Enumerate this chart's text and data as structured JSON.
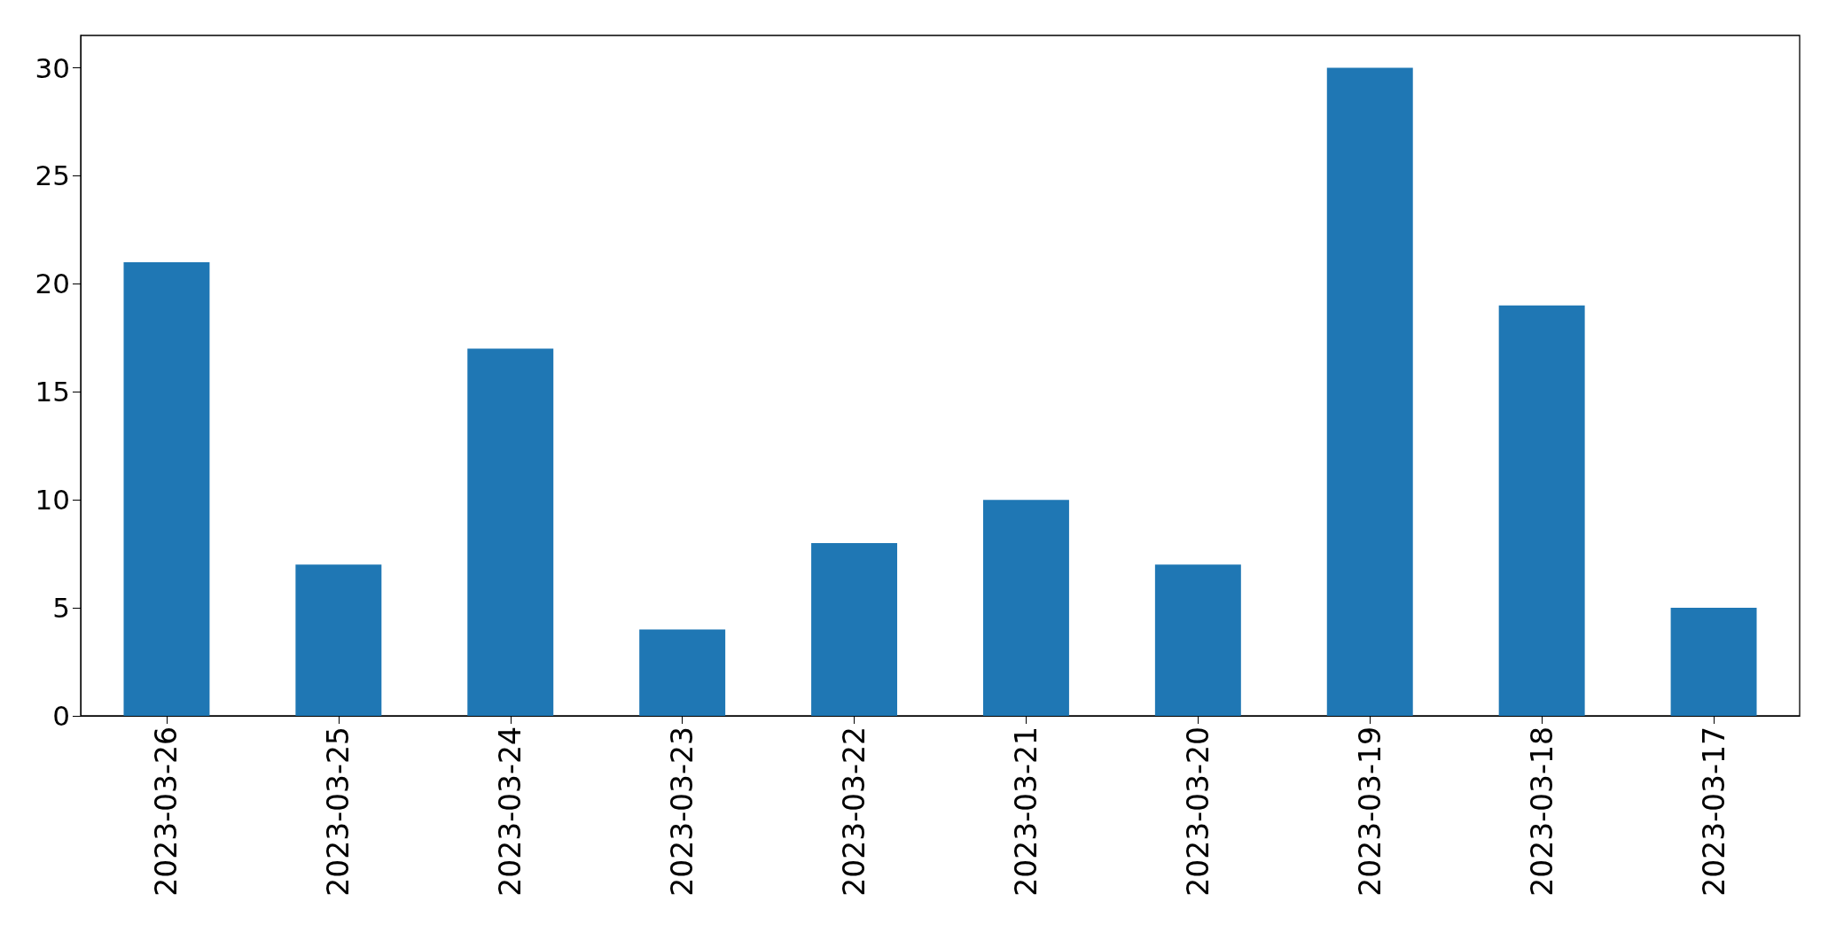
{
  "chart_data": {
    "type": "bar",
    "categories": [
      "2023-03-26",
      "2023-03-25",
      "2023-03-24",
      "2023-03-23",
      "2023-03-22",
      "2023-03-21",
      "2023-03-20",
      "2023-03-19",
      "2023-03-18",
      "2023-03-17"
    ],
    "values": [
      21,
      7,
      17,
      4,
      8,
      10,
      7,
      30,
      19,
      5
    ],
    "color": "#1f77b4",
    "ylim": [
      0,
      31.5
    ],
    "yticks": [
      0,
      5,
      10,
      15,
      20,
      25,
      30
    ]
  }
}
